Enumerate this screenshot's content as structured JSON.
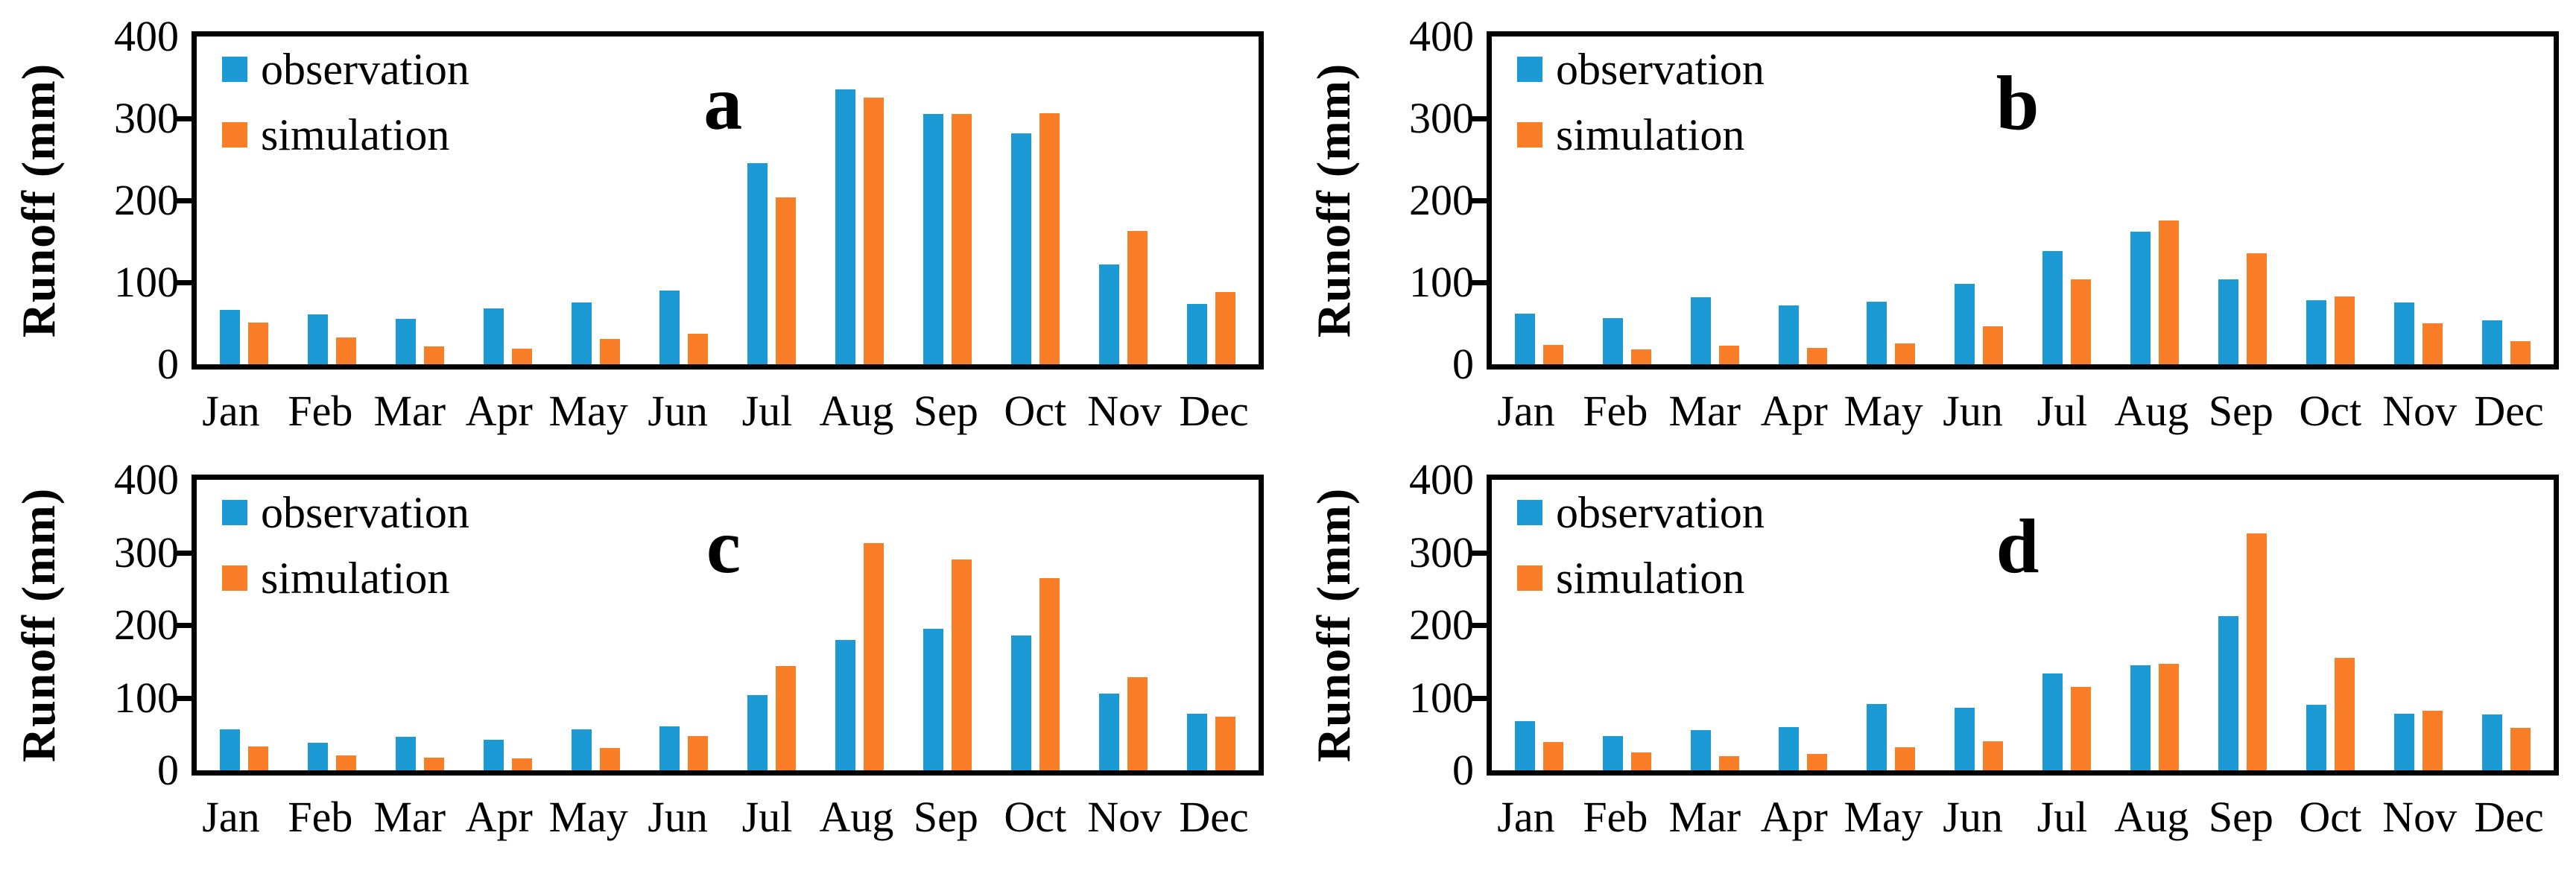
{
  "figure": {
    "ylabel": "Runoff (mm)",
    "legend": {
      "observation": "observation",
      "simulation": "simulation"
    },
    "colors": {
      "observation": "#1C9AD6",
      "simulation": "#FA7D27",
      "axis": "#000000",
      "background": "#ffffff"
    },
    "months": [
      "Jan",
      "Feb",
      "Mar",
      "Apr",
      "May",
      "Jun",
      "Jul",
      "Aug",
      "Sep",
      "Oct",
      "Nov",
      "Dec"
    ],
    "yticks": [
      0,
      100,
      200,
      300,
      400
    ]
  },
  "chart_data": [
    {
      "type": "bar",
      "title": "a",
      "categories": [
        "Jan",
        "Feb",
        "Mar",
        "Apr",
        "May",
        "Jun",
        "Jul",
        "Aug",
        "Sep",
        "Oct",
        "Nov",
        "Dec"
      ],
      "series": [
        {
          "name": "observation",
          "values": [
            66,
            61,
            55,
            68,
            75,
            90,
            245,
            335,
            305,
            282,
            122,
            74
          ]
        },
        {
          "name": "simulation",
          "values": [
            51,
            33,
            22,
            19,
            31,
            37,
            204,
            325,
            305,
            306,
            163,
            88
          ]
        }
      ],
      "xlabel": "",
      "ylabel": "Runoff (mm)",
      "ylim": [
        0,
        400
      ],
      "grid": false,
      "legend_position": "top-left"
    },
    {
      "type": "bar",
      "title": "b",
      "categories": [
        "Jan",
        "Feb",
        "Mar",
        "Apr",
        "May",
        "Jun",
        "Jul",
        "Aug",
        "Sep",
        "Oct",
        "Nov",
        "Dec"
      ],
      "series": [
        {
          "name": "observation",
          "values": [
            62,
            56,
            82,
            72,
            76,
            98,
            138,
            162,
            104,
            78,
            75,
            54
          ]
        },
        {
          "name": "simulation",
          "values": [
            24,
            18,
            23,
            20,
            25,
            46,
            104,
            175,
            135,
            83,
            50,
            28
          ]
        }
      ],
      "xlabel": "",
      "ylabel": "Runoff (mm)",
      "ylim": [
        0,
        400
      ],
      "grid": false,
      "legend_position": "top-left"
    },
    {
      "type": "bar",
      "title": "c",
      "categories": [
        "Jan",
        "Feb",
        "Mar",
        "Apr",
        "May",
        "Jun",
        "Jul",
        "Aug",
        "Sep",
        "Oct",
        "Nov",
        "Dec"
      ],
      "series": [
        {
          "name": "observation",
          "values": [
            56,
            38,
            46,
            42,
            56,
            61,
            104,
            179,
            195,
            186,
            106,
            78
          ]
        },
        {
          "name": "simulation",
          "values": [
            33,
            20,
            17,
            16,
            31,
            47,
            144,
            313,
            290,
            265,
            128,
            74
          ]
        }
      ],
      "xlabel": "",
      "ylabel": "Runoff (mm)",
      "ylim": [
        0,
        400
      ],
      "grid": false,
      "legend_position": "top-left"
    },
    {
      "type": "bar",
      "title": "d",
      "categories": [
        "Jan",
        "Feb",
        "Mar",
        "Apr",
        "May",
        "Jun",
        "Jul",
        "Aug",
        "Sep",
        "Oct",
        "Nov",
        "Dec"
      ],
      "series": [
        {
          "name": "observation",
          "values": [
            68,
            47,
            55,
            59,
            91,
            86,
            133,
            145,
            212,
            90,
            78,
            77
          ]
        },
        {
          "name": "simulation",
          "values": [
            39,
            25,
            19,
            23,
            32,
            40,
            115,
            147,
            326,
            155,
            82,
            58
          ]
        }
      ],
      "xlabel": "",
      "ylabel": "Runoff (mm)",
      "ylim": [
        0,
        400
      ],
      "grid": false,
      "legend_position": "top-left"
    }
  ]
}
